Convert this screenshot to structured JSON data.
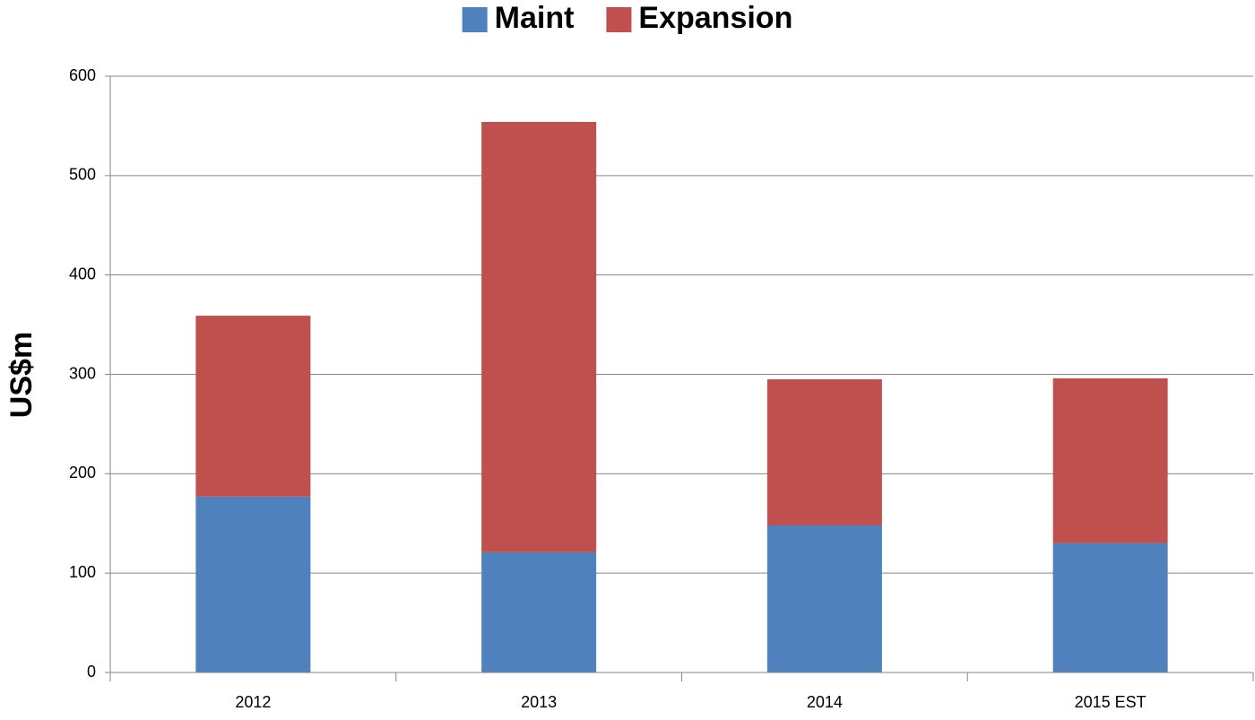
{
  "chart_data": {
    "type": "stacked_bar",
    "y_label": "US$m",
    "categories": [
      "2012",
      "2013",
      "2014",
      "2015 EST"
    ],
    "series": [
      {
        "name": "Maint",
        "color": "#4f81bd",
        "values": [
          177,
          121,
          148,
          130
        ]
      },
      {
        "name": "Expansion",
        "color": "#c0504d",
        "values": [
          182,
          433,
          147,
          166
        ]
      }
    ],
    "ylim": [
      0,
      600
    ],
    "yticks": [
      0,
      100,
      200,
      300,
      400,
      500,
      600
    ],
    "grid": true,
    "legend": "top"
  }
}
